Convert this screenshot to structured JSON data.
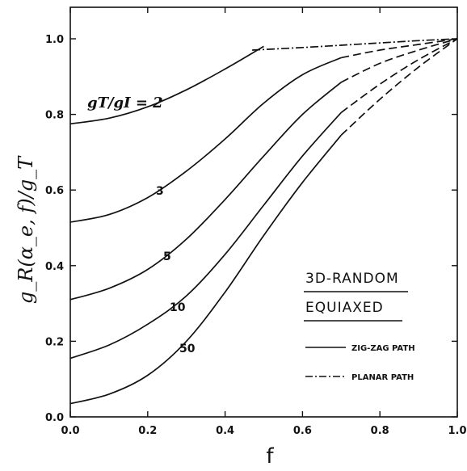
{
  "chart_data": {
    "type": "line",
    "title": "",
    "xlabel": "f",
    "ylabel": "g_R(α_e, f)/g_T",
    "xlim": [
      0.0,
      1.0
    ],
    "ylim": [
      0.0,
      1.1
    ],
    "grid": false,
    "x_ticks": [
      "0.0",
      "0.2",
      "0.4",
      "0.6",
      "0.8",
      "1.0"
    ],
    "y_ticks": [
      "0.0",
      "0.2",
      "0.4",
      "0.6",
      "0.8",
      "1.0"
    ],
    "series": [
      {
        "name": "gT/gI = 2",
        "label": "gT/gI = 2",
        "style": "solid",
        "x": [
          0.0,
          0.1,
          0.2,
          0.3,
          0.4,
          0.5
        ],
        "y": [
          0.775,
          0.79,
          0.82,
          0.865,
          0.92,
          0.98
        ]
      },
      {
        "name": "3",
        "label": "3",
        "style": "solid",
        "x": [
          0.0,
          0.1,
          0.2,
          0.3,
          0.4,
          0.5,
          0.6,
          0.7
        ],
        "y": [
          0.515,
          0.535,
          0.58,
          0.65,
          0.735,
          0.83,
          0.905,
          0.95
        ]
      },
      {
        "name": "3",
        "label": "",
        "style": "dashed",
        "x": [
          0.7,
          0.8,
          0.9,
          1.0
        ],
        "y": [
          0.95,
          0.97,
          0.985,
          1.0
        ]
      },
      {
        "name": "5",
        "label": "5",
        "style": "solid",
        "x": [
          0.0,
          0.1,
          0.2,
          0.3,
          0.4,
          0.5,
          0.6,
          0.7
        ],
        "y": [
          0.31,
          0.34,
          0.39,
          0.47,
          0.575,
          0.69,
          0.8,
          0.885
        ]
      },
      {
        "name": "5",
        "label": "",
        "style": "dashed",
        "x": [
          0.7,
          0.8,
          0.9,
          1.0
        ],
        "y": [
          0.885,
          0.935,
          0.97,
          1.0
        ]
      },
      {
        "name": "10",
        "label": "10",
        "style": "solid",
        "x": [
          0.0,
          0.1,
          0.2,
          0.3,
          0.4,
          0.5,
          0.6,
          0.7
        ],
        "y": [
          0.155,
          0.19,
          0.245,
          0.32,
          0.43,
          0.56,
          0.69,
          0.805
        ]
      },
      {
        "name": "10",
        "label": "",
        "style": "dashed",
        "x": [
          0.7,
          0.8,
          0.9,
          1.0
        ],
        "y": [
          0.805,
          0.88,
          0.945,
          1.0
        ]
      },
      {
        "name": "50",
        "label": "50",
        "style": "solid",
        "x": [
          0.0,
          0.1,
          0.2,
          0.3,
          0.4,
          0.5,
          0.6,
          0.7
        ],
        "y": [
          0.035,
          0.06,
          0.11,
          0.2,
          0.33,
          0.48,
          0.62,
          0.745
        ]
      },
      {
        "name": "50",
        "label": "",
        "style": "dashed",
        "x": [
          0.7,
          0.8,
          0.9,
          1.0
        ],
        "y": [
          0.745,
          0.84,
          0.925,
          1.0
        ]
      },
      {
        "name": "PLANAR PATH",
        "label": "",
        "style": "dashdot",
        "x": [
          0.47,
          0.6,
          0.7,
          0.8,
          0.9,
          1.0
        ],
        "y": [
          0.97,
          0.977,
          0.983,
          0.989,
          0.995,
          1.0
        ]
      }
    ],
    "legend": {
      "placement": "bottom-right",
      "title_lines": [
        "3D-RANDOM",
        "EQUIAXED"
      ],
      "items": [
        {
          "label": "ZIG-ZAG PATH",
          "style": "solid"
        },
        {
          "label": "PLANAR PATH",
          "style": "dashdot"
        }
      ]
    }
  }
}
